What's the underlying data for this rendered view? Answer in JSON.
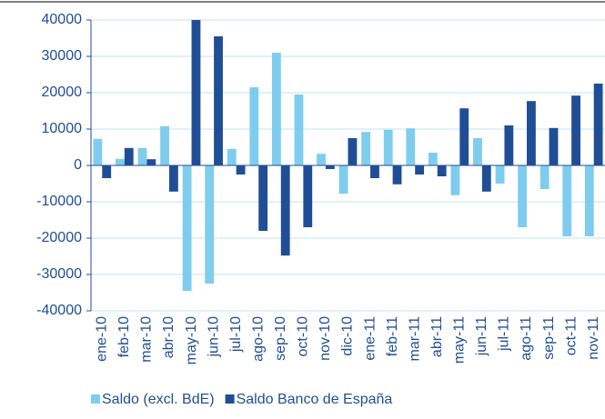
{
  "chart_data": {
    "type": "bar",
    "categories": [
      "ene-10",
      "feb-10",
      "mar-10",
      "abr-10",
      "may-10",
      "jun-10",
      "jul-10",
      "ago-10",
      "sep-10",
      "oct-10",
      "nov-10",
      "dic-10",
      "ene-11",
      "feb-11",
      "mar-11",
      "abr-11",
      "may-11",
      "jun-11",
      "jul-11",
      "ago-11",
      "sep-11",
      "oct-11",
      "nov-11"
    ],
    "series": [
      {
        "name": "Saldo (excl. BdE)",
        "color": "#7fcdee",
        "values": [
          7300,
          1800,
          4800,
          10800,
          -34500,
          -32500,
          4500,
          21500,
          31000,
          19500,
          3200,
          -7800,
          9200,
          9800,
          10200,
          3500,
          -8200,
          7500,
          -5000,
          -17000,
          -6500,
          -19500,
          -19500
        ]
      },
      {
        "name": "Saldo Banco de España",
        "color": "#1f4e96",
        "values": [
          -3500,
          4800,
          1700,
          -7200,
          40000,
          35500,
          -2500,
          -18000,
          -24800,
          -17000,
          -1000,
          7500,
          -3500,
          -5200,
          -2500,
          -3000,
          15700,
          -7200,
          11000,
          17700,
          10300,
          19200,
          22500
        ]
      }
    ],
    "ylim": [
      -40000,
      40000
    ],
    "yticks": [
      -40000,
      -30000,
      -20000,
      -10000,
      0,
      10000,
      20000,
      30000,
      40000
    ],
    "grid": true,
    "legend": "bottom"
  }
}
